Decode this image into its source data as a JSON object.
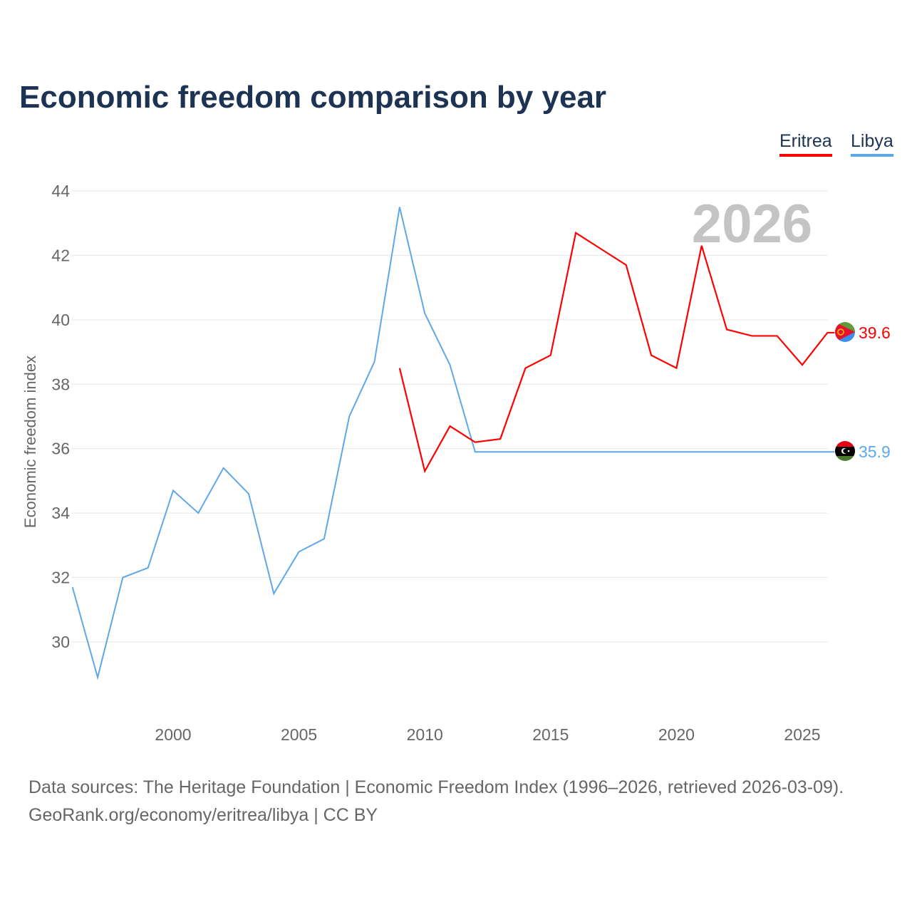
{
  "title": "Economic freedom comparison by year",
  "footer": {
    "line1": "Data sources: The Heritage Foundation | Economic Freedom Index (1996–2026, retrieved 2026-03-09).",
    "line2": "GeoRank.org/economy/eritrea/libya | CC BY"
  },
  "chart_data": {
    "type": "line",
    "title": "Economic freedom comparison by year",
    "ylabel": "Economic freedom index",
    "xlabel": "",
    "ylim": [
      28,
      44
    ],
    "xlim": [
      1996,
      2026
    ],
    "yticks": [
      30,
      32,
      34,
      36,
      38,
      40,
      42,
      44
    ],
    "xticks": [
      2000,
      2005,
      2010,
      2015,
      2020,
      2025
    ],
    "year_label": "2026",
    "legend_placement": "top-right",
    "series": [
      {
        "name": "Eritrea",
        "color": "#ff0000",
        "end_label": "39.6",
        "x": [
          2009,
          2010,
          2011,
          2012,
          2013,
          2014,
          2015,
          2016,
          2017,
          2018,
          2019,
          2020,
          2021,
          2022,
          2023,
          2024,
          2025,
          2026
        ],
        "values": [
          38.5,
          35.3,
          36.7,
          36.2,
          36.3,
          38.5,
          38.9,
          42.7,
          42.2,
          41.7,
          38.9,
          38.5,
          42.3,
          39.7,
          39.5,
          39.5,
          38.6,
          39.6
        ]
      },
      {
        "name": "Libya",
        "color": "#5ea8ea",
        "end_label": "35.9",
        "x": [
          1996,
          1997,
          1998,
          1999,
          2000,
          2001,
          2002,
          2003,
          2004,
          2005,
          2006,
          2007,
          2008,
          2009,
          2010,
          2011,
          2012,
          2026
        ],
        "values": [
          31.7,
          28.9,
          32.0,
          32.3,
          34.7,
          34.0,
          35.4,
          34.6,
          31.5,
          32.8,
          33.2,
          37.0,
          38.7,
          43.5,
          40.2,
          38.6,
          35.9,
          35.9
        ]
      }
    ]
  }
}
